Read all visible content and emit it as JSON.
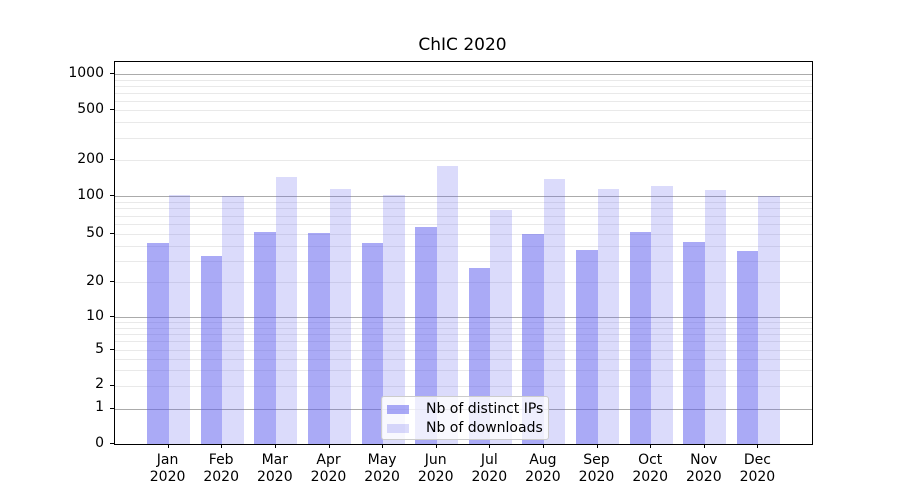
{
  "title": "ChIC 2020",
  "chart_data": {
    "type": "bar",
    "title": "ChIC 2020",
    "categories": [
      "Jan 2020",
      "Feb 2020",
      "Mar 2020",
      "Apr 2020",
      "May 2020",
      "Jun 2020",
      "Jul 2020",
      "Aug 2020",
      "Sep 2020",
      "Oct 2020",
      "Nov 2020",
      "Dec 2020"
    ],
    "x_tick_month_labels": [
      "Jan",
      "Feb",
      "Mar",
      "Apr",
      "May",
      "Jun",
      "Jul",
      "Aug",
      "Sep",
      "Oct",
      "Nov",
      "Dec"
    ],
    "x_tick_year_label": "2020",
    "series": [
      {
        "name": "Nb of distinct IPs",
        "color": "rgba(92,92,237,0.52)",
        "values": [
          42,
          33,
          52,
          51,
          42,
          57,
          26,
          50,
          37,
          52,
          43,
          36
        ]
      },
      {
        "name": "Nb of downloads",
        "color": "rgba(92,92,237,0.22)",
        "values": [
          103,
          100,
          145,
          115,
          102,
          177,
          78,
          138,
          114,
          122,
          112,
          100
        ]
      }
    ],
    "y_axis": {
      "scale": "log-like with zero baseline",
      "tick_values": [
        0,
        1,
        2,
        5,
        10,
        20,
        50,
        100,
        200,
        500,
        1000
      ],
      "tick_labels": [
        "0",
        "1",
        "2",
        "5",
        "10",
        "20",
        "50",
        "100",
        "200",
        "500",
        "1000"
      ],
      "major_gridline_values": [
        1,
        10,
        100,
        1000
      ],
      "minor_gridline_values": [
        2,
        3,
        4,
        5,
        6,
        7,
        8,
        9,
        20,
        30,
        40,
        50,
        60,
        70,
        80,
        90,
        200,
        300,
        400,
        500,
        600,
        700,
        800,
        900
      ]
    },
    "legend": {
      "position": "lower center",
      "entries": [
        "Nb of distinct IPs",
        "Nb of downloads"
      ]
    },
    "grid": true
  },
  "colors": {
    "bar_distinct_ips": "rgba(92,92,237,0.52)",
    "bar_downloads": "rgba(92,92,237,0.22)",
    "major_grid": "#ababab",
    "minor_grid": "#e9e9e9",
    "axis_spine": "#000000",
    "text": "#000000",
    "legend_border": "#cccccc",
    "legend_background": "rgba(255,255,255,0.8)"
  }
}
